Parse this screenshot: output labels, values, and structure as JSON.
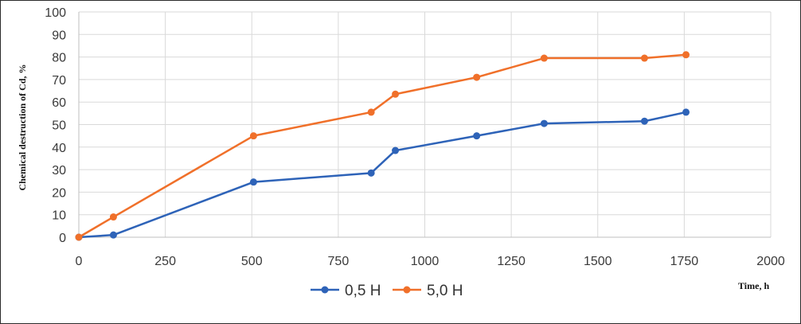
{
  "chart_data": {
    "type": "line",
    "title": "",
    "xlabel": "Time, h",
    "ylabel": "Chemical destruction of Cd, %",
    "xlim": [
      0,
      2000
    ],
    "ylim": [
      0,
      100
    ],
    "xticks": [
      0,
      250,
      500,
      750,
      1000,
      1250,
      1500,
      1750,
      2000
    ],
    "yticks": [
      0,
      10,
      20,
      30,
      40,
      50,
      60,
      70,
      80,
      90,
      100
    ],
    "grid": true,
    "legend_position": "bottom",
    "series": [
      {
        "name": "0,5 H",
        "color": "#2e63b8",
        "x": [
          0,
          100,
          505,
          845,
          915,
          1150,
          1345,
          1635,
          1755
        ],
        "y": [
          0,
          1,
          24.5,
          28.5,
          38.5,
          45,
          50.5,
          51.5,
          55.5
        ]
      },
      {
        "name": "5,0 H",
        "color": "#f0702a",
        "x": [
          0,
          100,
          505,
          845,
          915,
          1150,
          1345,
          1635,
          1755
        ],
        "y": [
          0,
          9,
          45,
          55.5,
          63.5,
          71,
          79.5,
          79.5,
          81
        ]
      }
    ]
  }
}
